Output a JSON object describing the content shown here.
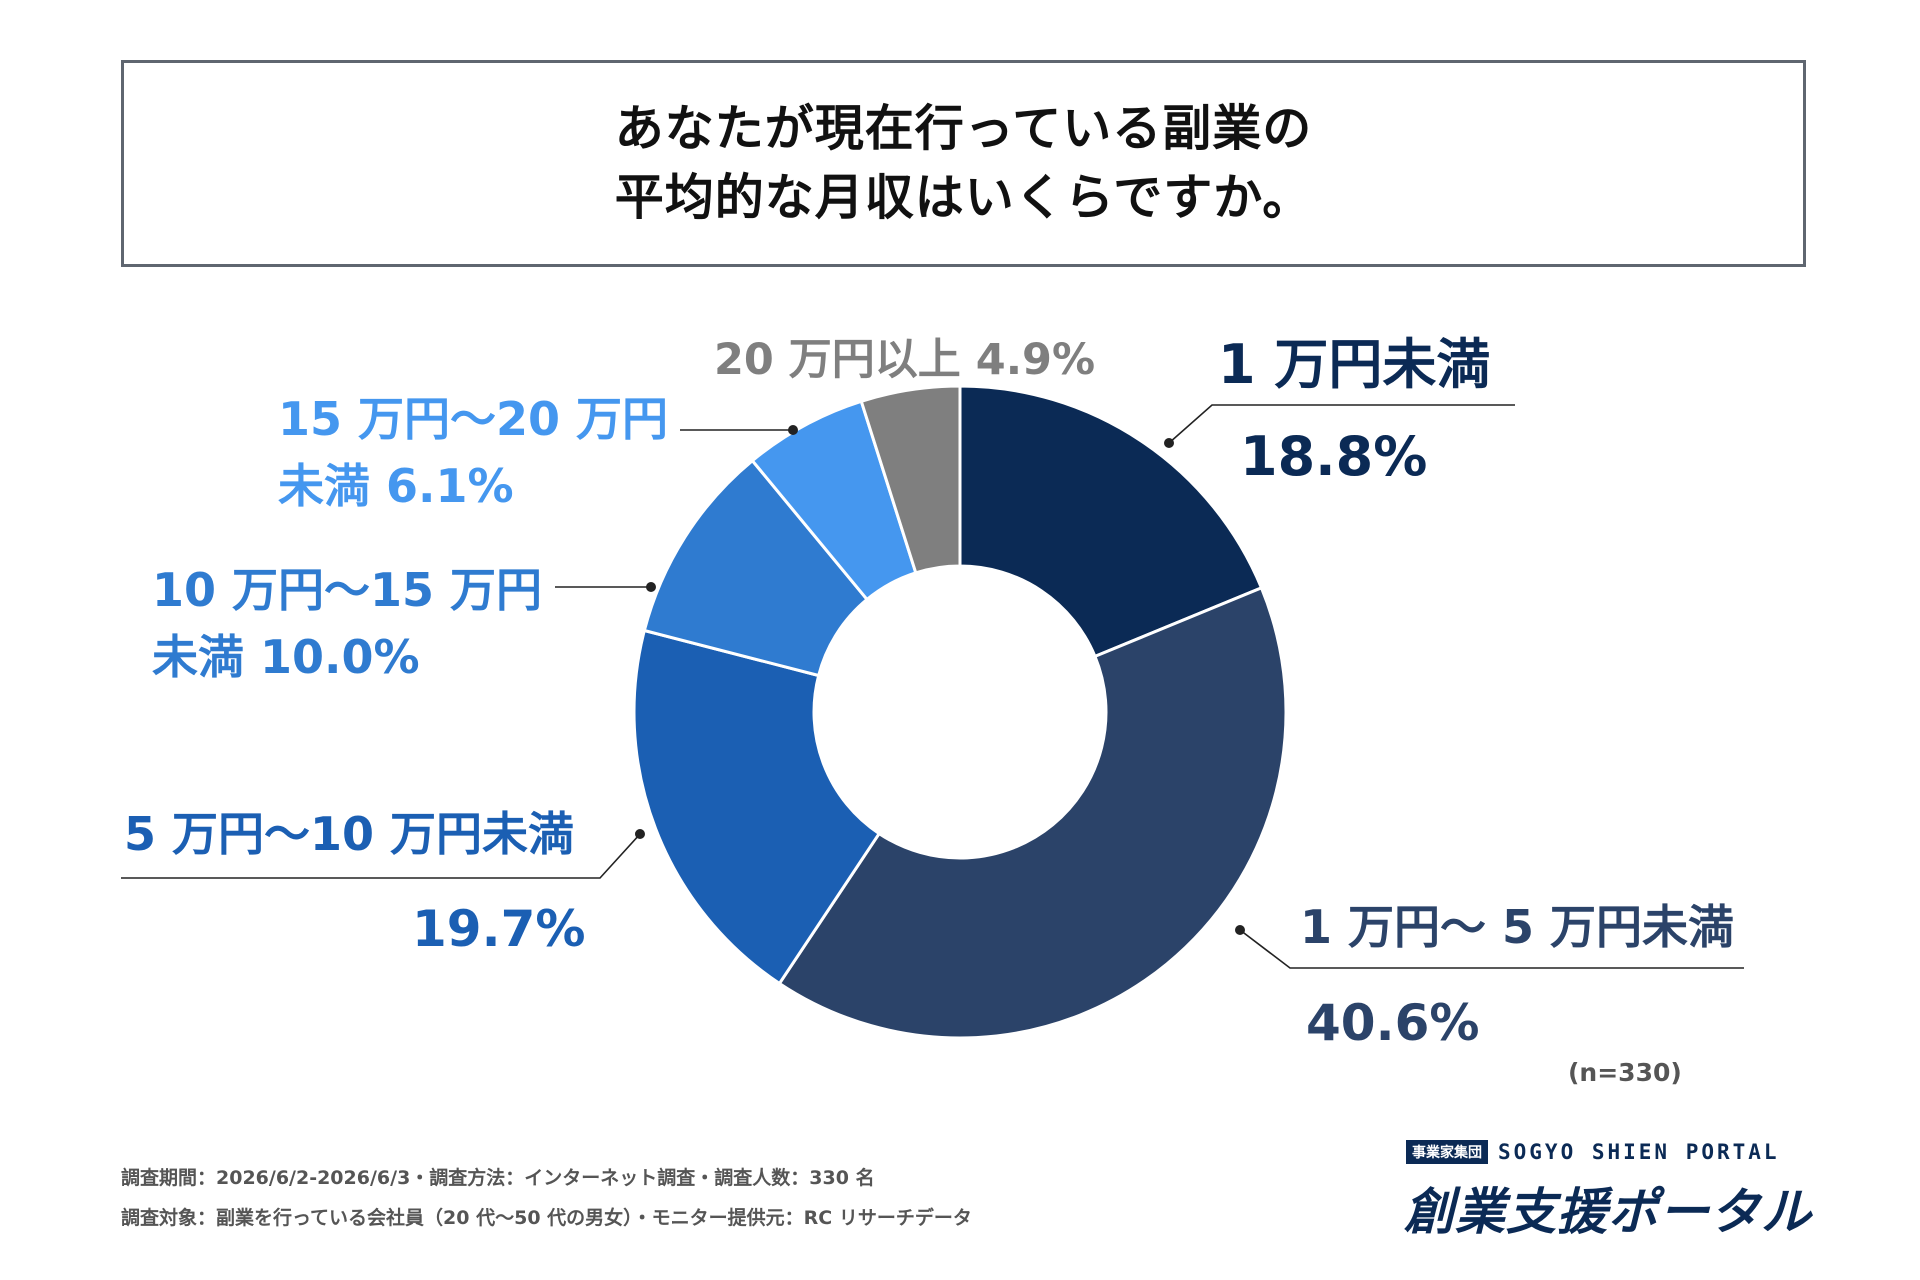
{
  "title": {
    "line1": "あなたが現在行っている副業の",
    "line2": "平均的な月収はいくらですか。"
  },
  "chart_data": {
    "type": "pie",
    "categories": [
      "1 万円未満",
      "1 万円〜 5 万円未満",
      "5 万円〜10 万円未満",
      "10 万円〜15 万円未満",
      "15 万円〜20 万円未満",
      "20 万円以上"
    ],
    "values": [
      18.8,
      40.6,
      19.7,
      10.0,
      6.1,
      4.9
    ],
    "colors": [
      "#0b2a55",
      "#2b4369",
      "#1b5fb3",
      "#2f7bd0",
      "#4597ef",
      "#7f7f7f"
    ],
    "label_colors": [
      "#0b2a55",
      "#2b4369",
      "#1b5fb3",
      "#2f7bd0",
      "#4597ef",
      "#7f7f7f"
    ],
    "labels": {
      "s0_name": "1 万円未満",
      "s0_value": "18.8%",
      "s1_name": "1 万円〜 5 万円未満",
      "s1_value": "40.6%",
      "s2_name": "5 万円〜10 万円未満",
      "s2_value": "19.7%",
      "s3_name_l1": "10 万円〜15 万円",
      "s3_name_l2": "未満 10.0%",
      "s4_name_l1": "15 万円〜20 万円",
      "s4_name_l2": "未満  6.1%",
      "s5_label": "20 万円以上 4.9%"
    },
    "n_label": "(n=330)"
  },
  "footer": {
    "line1": "調査期間：2026/6/2-2026/6/3・調査方法：インターネット調査・調査人数：330 名",
    "line2": "調査対象：副業を行っている会社員（20 代〜50 代の男女）・モニター提供元：RC リサーチデータ"
  },
  "logo": {
    "badge": "事業家集団",
    "english": "SOGYO SHIEN PORTAL",
    "japanese": "創業支援ポータル"
  }
}
